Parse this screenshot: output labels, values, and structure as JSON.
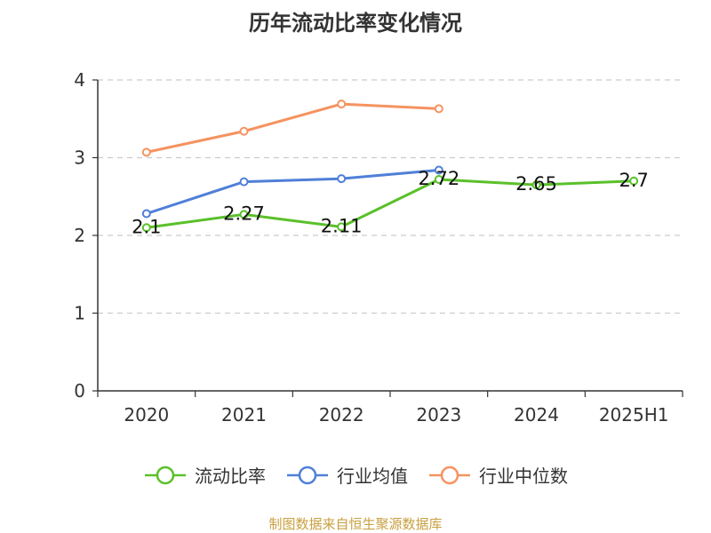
{
  "title": "历年流动比率变化情况",
  "footer": "制图数据来自恒生聚源数据库",
  "colors": {
    "axis": "#333333",
    "grid": "#cccccc",
    "footer": "#c8a040"
  },
  "chart_data": {
    "type": "line",
    "categories": [
      "2020",
      "2021",
      "2022",
      "2023",
      "2024",
      "2025H1"
    ],
    "ylim": [
      0,
      4
    ],
    "yticks": [
      0,
      1,
      2,
      3,
      4
    ],
    "grid": true,
    "legend_position": "bottom",
    "series": [
      {
        "name": "流动比率",
        "color": "#5ac02a",
        "values": [
          2.1,
          2.27,
          2.11,
          2.72,
          2.65,
          2.7
        ],
        "labels": [
          "2.1",
          "2.27",
          "2.11",
          "2.72",
          "2.65",
          "2.7"
        ]
      },
      {
        "name": "行业均值",
        "color": "#4f7fd8",
        "values": [
          2.28,
          2.69,
          2.73,
          2.84,
          null,
          null
        ]
      },
      {
        "name": "行业中位数",
        "color": "#f59360",
        "values": [
          3.07,
          3.34,
          3.69,
          3.63,
          null,
          null
        ]
      }
    ]
  }
}
